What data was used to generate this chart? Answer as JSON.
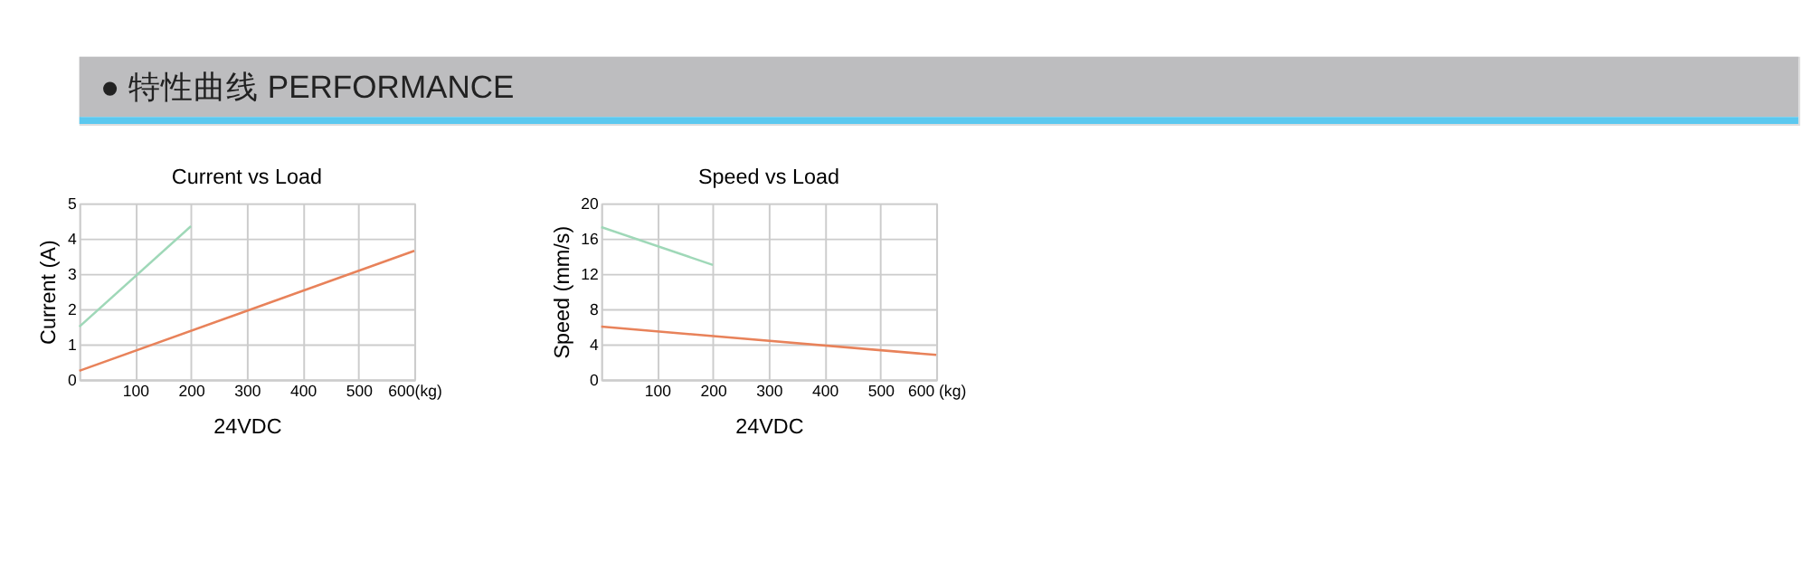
{
  "chart_data": [
    {
      "type": "line",
      "title": "Current vs Load",
      "annotations": [
        "● 特性曲线 PERFORMANCE"
      ],
      "xlabel": "24VDC",
      "ylabel": "Current (A)",
      "xlim": [
        0,
        600
      ],
      "ylim": [
        0,
        5
      ],
      "xticks": [
        100,
        200,
        300,
        400,
        500,
        {
          "value": 600,
          "label": "600(kg)"
        }
      ],
      "yticks": [
        0,
        1,
        2,
        3,
        4,
        5
      ],
      "grid": true,
      "legend": false,
      "marker": "none",
      "line_style": "solid",
      "series": [
        {
          "color": "#9fd8b8",
          "x": [
            0,
            200
          ],
          "values": [
            1.5,
            4.35
          ]
        },
        {
          "color": "#e8825a",
          "x": [
            0,
            600
          ],
          "values": [
            0.25,
            3.65
          ]
        }
      ]
    },
    {
      "type": "line",
      "title": "Speed vs Load",
      "xlabel": "24VDC",
      "ylabel": "Speed (mm/s)",
      "xlim": [
        0,
        600
      ],
      "ylim": [
        0,
        20
      ],
      "xticks": [
        100,
        200,
        300,
        400,
        500,
        {
          "value": 600,
          "label": "600 (kg)"
        }
      ],
      "yticks": [
        0,
        4,
        8,
        12,
        16,
        20
      ],
      "grid": true,
      "legend": false,
      "marker": "none",
      "line_style": "solid",
      "series": [
        {
          "color": "#9fd8b8",
          "x": [
            0,
            200
          ],
          "values": [
            17.3,
            13
          ]
        },
        {
          "color": "#e8825a",
          "x": [
            0,
            600
          ],
          "values": [
            6,
            2.8
          ]
        }
      ]
    }
  ]
}
